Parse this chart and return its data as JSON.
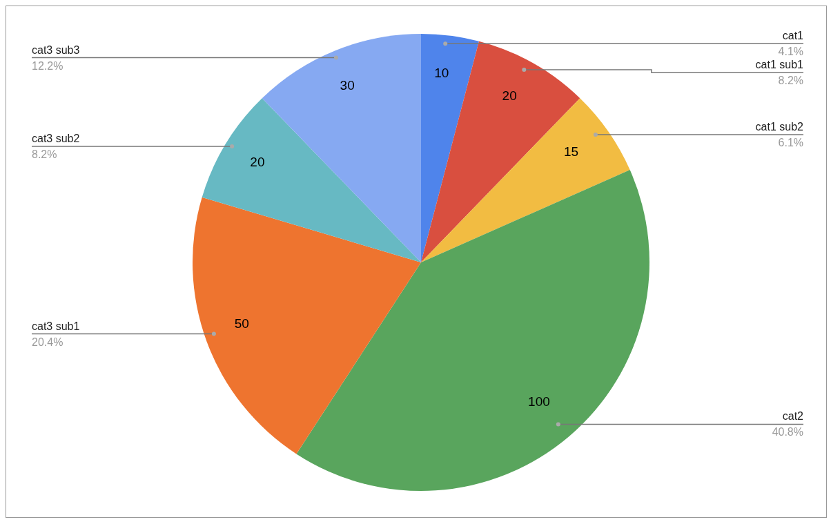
{
  "chart_data": {
    "type": "pie",
    "categories": [
      "cat1",
      "cat1 sub1",
      "cat1 sub2",
      "cat2",
      "cat3 sub1",
      "cat3 sub2",
      "cat3 sub3"
    ],
    "values": [
      10,
      20,
      15,
      100,
      50,
      20,
      30
    ],
    "colors": [
      "#4f84eb",
      "#d94f3f",
      "#f2bc42",
      "#59a55d",
      "#ee742f",
      "#67b9c3",
      "#86a9f2"
    ],
    "data_labels": true,
    "annotations": [
      "4.1%",
      "8.2%",
      "6.1%",
      "40.8%",
      "20.4%",
      "8.2%",
      "12.2%"
    ]
  }
}
